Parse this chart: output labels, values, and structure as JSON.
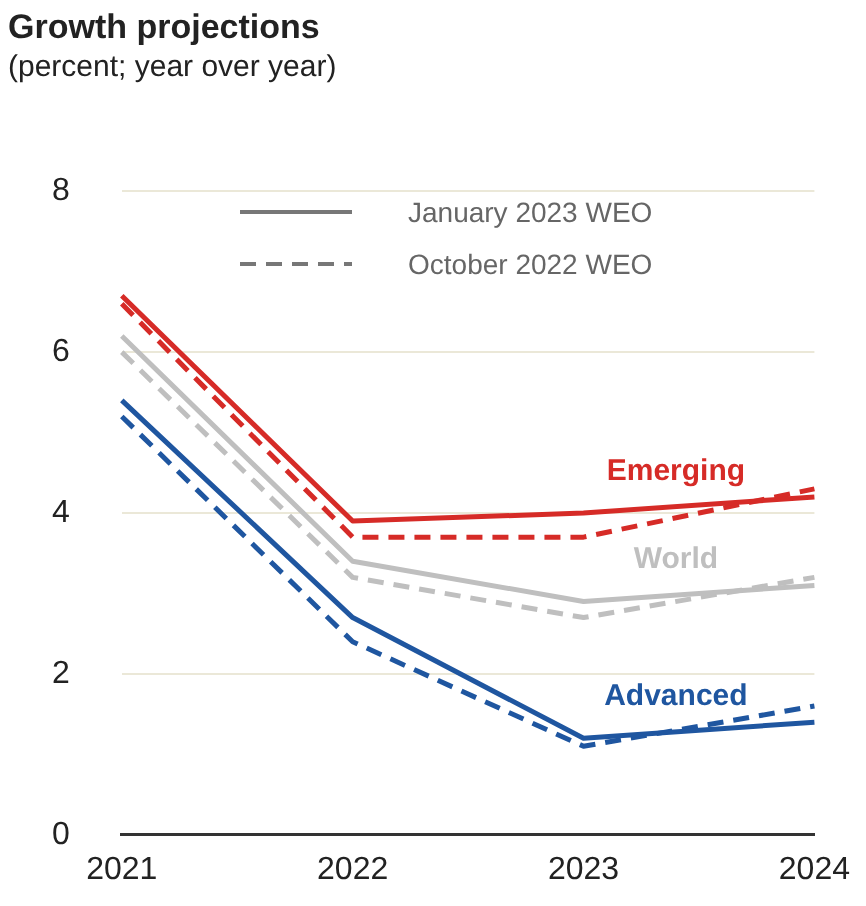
{
  "chart_data": {
    "type": "line",
    "title": "Growth projections",
    "subtitle": "(percent; year over year)",
    "categories": [
      "2021",
      "2022",
      "2023",
      "2024"
    ],
    "ylim": [
      0,
      8
    ],
    "yticks": [
      0,
      2,
      4,
      6,
      8
    ],
    "grid": "y",
    "legend": false,
    "marker": "none",
    "annotations": [
      "January 2023 WEO",
      "October 2022 WEO"
    ],
    "series": [
      {
        "name": "Emerging",
        "color": "#d62b27",
        "line_style": "solid",
        "values": [
          6.7,
          3.9,
          4.0,
          4.2
        ]
      },
      {
        "color": "#d62b27",
        "line_style": "dashed",
        "values": [
          6.6,
          3.7,
          3.7,
          4.3
        ]
      },
      {
        "name": "World",
        "color": "#bfbfbf",
        "line_style": "solid",
        "values": [
          6.2,
          3.4,
          2.9,
          3.1
        ]
      },
      {
        "color": "#bfbfbf",
        "line_style": "dashed",
        "values": [
          6.0,
          3.2,
          2.7,
          3.2
        ]
      },
      {
        "name": "Advanced",
        "color": "#1f56a0",
        "line_style": "solid",
        "values": [
          5.4,
          2.7,
          1.2,
          1.4
        ]
      },
      {
        "color": "#1f56a0",
        "line_style": "dashed",
        "values": [
          5.2,
          2.4,
          1.1,
          1.6
        ]
      }
    ]
  }
}
